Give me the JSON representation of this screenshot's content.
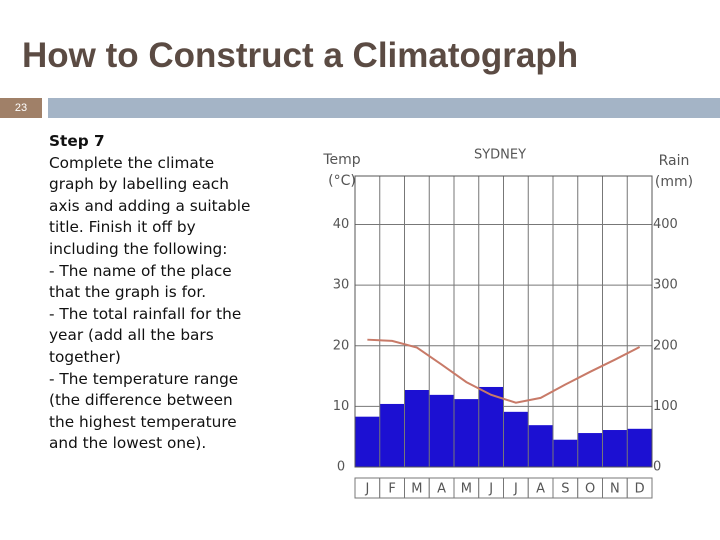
{
  "slide": {
    "title": "How to Construct a Climatograph",
    "page_number": "23",
    "body": {
      "heading": "Step 7",
      "lines": [
        "Complete the climate",
        "graph by labelling each",
        "axis and adding a suitable",
        "title. Finish it off by",
        "including the following:",
        "- The name of the place",
        "that the graph is for.",
        "- The total rainfall for the",
        "year (add all the bars",
        "together)",
        "- The temperature range",
        "(the difference between",
        "the highest temperature",
        "and the lowest one)."
      ]
    }
  },
  "chart_data": {
    "type": "climatograph",
    "title": "SYDNEY",
    "ylabel": "Temp (°C)",
    "y2label": "Rain (mm)",
    "categories": [
      "J",
      "F",
      "M",
      "A",
      "M",
      "J",
      "J",
      "A",
      "S",
      "O",
      "N",
      "D"
    ],
    "series": [
      {
        "name": "Rain",
        "type": "bar",
        "axis": "y2",
        "color": "#1c10d2",
        "values": [
          83,
          104,
          127,
          119,
          112,
          132,
          91,
          69,
          45,
          56,
          61,
          63
        ]
      },
      {
        "name": "Temp",
        "type": "line",
        "color": "#c87a68",
        "values": [
          21,
          20.8,
          19.7,
          16.9,
          14,
          11.9,
          10.6,
          11.4,
          13.6,
          15.7,
          17.7,
          19.8
        ]
      }
    ],
    "ylim": [
      0,
      48
    ],
    "yticks": [
      0,
      10,
      20,
      30,
      40
    ],
    "y2lim": [
      0,
      480
    ],
    "y2ticks": [
      0,
      100,
      200,
      300,
      400
    ],
    "grid": true
  }
}
